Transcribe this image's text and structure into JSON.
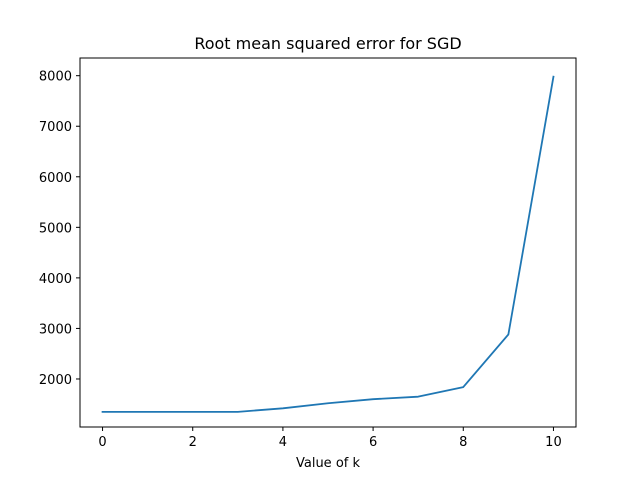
{
  "chart_data": {
    "type": "line",
    "title": "Root mean squared error for SGD",
    "xlabel": "Value of k",
    "ylabel": "",
    "xlim": [
      -0.5,
      10.5
    ],
    "ylim": [
      1050,
      8350
    ],
    "xticks": [
      0,
      2,
      4,
      6,
      8,
      10
    ],
    "yticks": [
      2000,
      3000,
      4000,
      5000,
      6000,
      7000,
      8000
    ],
    "grid": false,
    "series": [
      {
        "color": "#1f77b4",
        "x": [
          0,
          1,
          2,
          3,
          4,
          5,
          6,
          7,
          8,
          9,
          10
        ],
        "y": [
          1350,
          1350,
          1350,
          1350,
          1420,
          1520,
          1600,
          1650,
          1840,
          2880,
          7980
        ]
      }
    ]
  }
}
